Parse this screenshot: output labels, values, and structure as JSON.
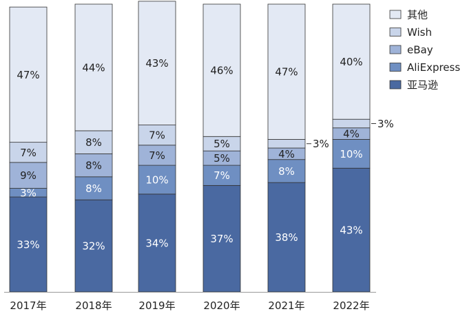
{
  "chart_data": {
    "type": "bar",
    "stacked": true,
    "ylim": [
      0,
      100
    ],
    "legend_position": "right",
    "categories": [
      "2017年",
      "2018年",
      "2019年",
      "2020年",
      "2021年",
      "2022年"
    ],
    "series": [
      {
        "name": "亚马逊",
        "color": "#4a69a1",
        "label_color": "#ffffff",
        "values": [
          33,
          32,
          34,
          37,
          38,
          43
        ],
        "labels": [
          "33%",
          "32%",
          "34%",
          "37%",
          "38%",
          "43%"
        ]
      },
      {
        "name": "AliExpress",
        "color": "#6f8fc2",
        "label_color": "#ffffff",
        "values": [
          3,
          8,
          10,
          7,
          8,
          10
        ],
        "labels": [
          "3%",
          "8%",
          "10%",
          "7%",
          "8%",
          "10%"
        ]
      },
      {
        "name": "eBay",
        "color": "#9fb3d8",
        "label_color": "#222222",
        "values": [
          9,
          8,
          7,
          5,
          4,
          4
        ],
        "labels": [
          "9%",
          "8%",
          "7%",
          "5%",
          "4%",
          "4%"
        ]
      },
      {
        "name": "Wish",
        "color": "#c9d5ea",
        "label_color": "#222222",
        "values": [
          7,
          8,
          7,
          5,
          3,
          3
        ],
        "labels": [
          "7%",
          "8%",
          "7%",
          "5%",
          "",
          ""
        ]
      },
      {
        "name": "其他",
        "color": "#e3e9f4",
        "label_color": "#222222",
        "values": [
          47,
          44,
          43,
          46,
          47,
          40
        ],
        "labels": [
          "47%",
          "44%",
          "43%",
          "46%",
          "47%",
          "40%"
        ]
      }
    ],
    "annotations": [
      {
        "category": "2021年",
        "series": "Wish",
        "text": "3%"
      },
      {
        "category": "2022年",
        "series": "Wish",
        "text": "3%"
      }
    ]
  }
}
